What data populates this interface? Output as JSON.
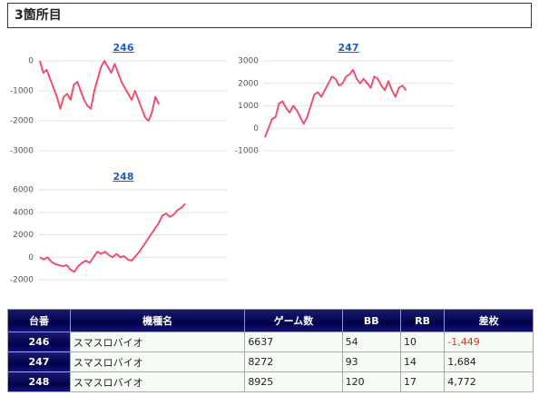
{
  "header": {
    "title": "3箇所目"
  },
  "chart_data": [
    {
      "type": "line",
      "title": "246",
      "color": "#f0506e",
      "grid": true,
      "ylim": [
        -3000,
        0
      ],
      "yticks": [
        0,
        -1000,
        -2000,
        -3000
      ],
      "values": [
        0,
        -400,
        -300,
        -600,
        -900,
        -1200,
        -1600,
        -1200,
        -1100,
        -1300,
        -800,
        -700,
        -1000,
        -1300,
        -1500,
        -1600,
        -1000,
        -600,
        -200,
        0,
        -200,
        -400,
        -100,
        -400,
        -700,
        -900,
        -1100,
        -1300,
        -1000,
        -1300,
        -1600,
        -1900,
        -2000,
        -1700,
        -1200,
        -1449
      ]
    },
    {
      "type": "line",
      "title": "247",
      "color": "#f0506e",
      "grid": true,
      "ylim": [
        -1000,
        3000
      ],
      "yticks": [
        3000,
        2000,
        1000,
        0,
        -1000
      ],
      "values": [
        -400,
        0,
        400,
        500,
        1100,
        1200,
        900,
        700,
        1000,
        800,
        500,
        200,
        500,
        1000,
        1500,
        1600,
        1400,
        1700,
        2000,
        2300,
        2200,
        1900,
        2000,
        2300,
        2400,
        2600,
        2200,
        2000,
        2200,
        2000,
        1800,
        2300,
        2200,
        1900,
        1700,
        2100,
        1700,
        1400,
        1800,
        1900,
        1684
      ]
    },
    {
      "type": "line",
      "title": "248",
      "color": "#f0506e",
      "grid": true,
      "ylim": [
        -2000,
        6000
      ],
      "yticks": [
        6000,
        4000,
        2000,
        0,
        -2000
      ],
      "values": [
        0,
        -200,
        0,
        -400,
        -600,
        -700,
        -800,
        -700,
        -1100,
        -1300,
        -800,
        -500,
        -300,
        -500,
        0,
        500,
        300,
        500,
        200,
        0,
        300,
        0,
        100,
        -200,
        -300,
        100,
        500,
        1000,
        1500,
        2000,
        2500,
        3000,
        3700,
        3900,
        3600,
        3800,
        4200,
        4400,
        4772
      ]
    }
  ],
  "table": {
    "columns": [
      "台番",
      "機種名",
      "ゲーム数",
      "BB",
      "RB",
      "差枚"
    ],
    "rows": [
      [
        "246",
        "スマスロバイオ",
        "6637",
        "54",
        "10",
        "-1,449"
      ],
      [
        "247",
        "スマスロバイオ",
        "8272",
        "93",
        "14",
        "1,684"
      ],
      [
        "248",
        "スマスロバイオ",
        "8925",
        "120",
        "17",
        "4,772"
      ]
    ]
  }
}
